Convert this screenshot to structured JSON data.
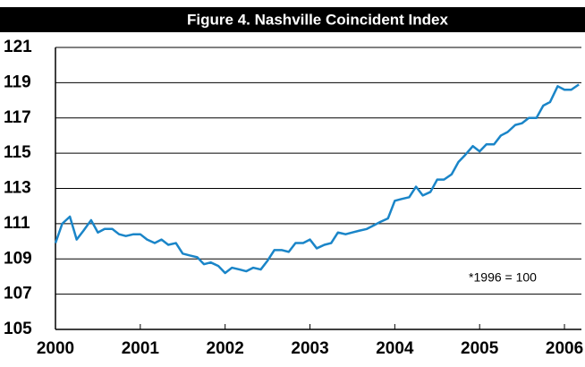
{
  "chart_data": {
    "type": "line",
    "title": "Figure 4. Nashville Coincident Index",
    "annotation": "*1996 = 100",
    "x": [
      2000.0,
      2000.08,
      2000.17,
      2000.25,
      2000.33,
      2000.42,
      2000.5,
      2000.58,
      2000.67,
      2000.75,
      2000.83,
      2000.92,
      2001.0,
      2001.08,
      2001.17,
      2001.25,
      2001.33,
      2001.42,
      2001.5,
      2001.58,
      2001.67,
      2001.75,
      2001.83,
      2001.92,
      2002.0,
      2002.08,
      2002.17,
      2002.25,
      2002.33,
      2002.42,
      2002.5,
      2002.58,
      2002.67,
      2002.75,
      2002.83,
      2002.92,
      2003.0,
      2003.08,
      2003.17,
      2003.25,
      2003.33,
      2003.42,
      2003.5,
      2003.58,
      2003.67,
      2003.75,
      2003.83,
      2003.92,
      2004.0,
      2004.08,
      2004.17,
      2004.25,
      2004.33,
      2004.42,
      2004.5,
      2004.58,
      2004.67,
      2004.75,
      2004.83,
      2004.92,
      2005.0,
      2005.08,
      2005.17,
      2005.25,
      2005.33,
      2005.42,
      2005.5,
      2005.58,
      2005.67,
      2005.75,
      2005.83,
      2005.92,
      2006.0,
      2006.08,
      2006.17
    ],
    "series": [
      {
        "name": "Nashville Coincident Index",
        "color": "#1a85c8",
        "values": [
          109.9,
          111.0,
          111.4,
          110.1,
          110.6,
          111.2,
          110.5,
          110.7,
          110.7,
          110.4,
          110.3,
          110.4,
          110.4,
          110.1,
          109.9,
          110.1,
          109.8,
          109.9,
          109.3,
          109.2,
          109.1,
          108.7,
          108.8,
          108.6,
          108.2,
          108.5,
          108.4,
          108.3,
          108.5,
          108.4,
          108.9,
          109.5,
          109.5,
          109.4,
          109.9,
          109.9,
          110.1,
          109.6,
          109.8,
          109.9,
          110.5,
          110.4,
          110.5,
          110.6,
          110.7,
          110.9,
          111.1,
          111.3,
          112.3,
          112.4,
          112.5,
          113.1,
          112.6,
          112.8,
          113.5,
          113.5,
          113.8,
          114.5,
          114.9,
          115.4,
          115.1,
          115.5,
          115.5,
          116.0,
          116.2,
          116.6,
          116.7,
          117.0,
          117.0,
          117.7,
          117.9,
          118.8,
          118.6,
          118.6,
          118.9
        ]
      }
    ],
    "xlim": [
      2000,
      2006.2
    ],
    "xticks": [
      2000,
      2001,
      2002,
      2003,
      2004,
      2005,
      2006
    ],
    "ylim": [
      105,
      121
    ],
    "yticks": [
      105,
      107,
      109,
      111,
      113,
      115,
      117,
      119,
      121
    ],
    "grid": true
  }
}
